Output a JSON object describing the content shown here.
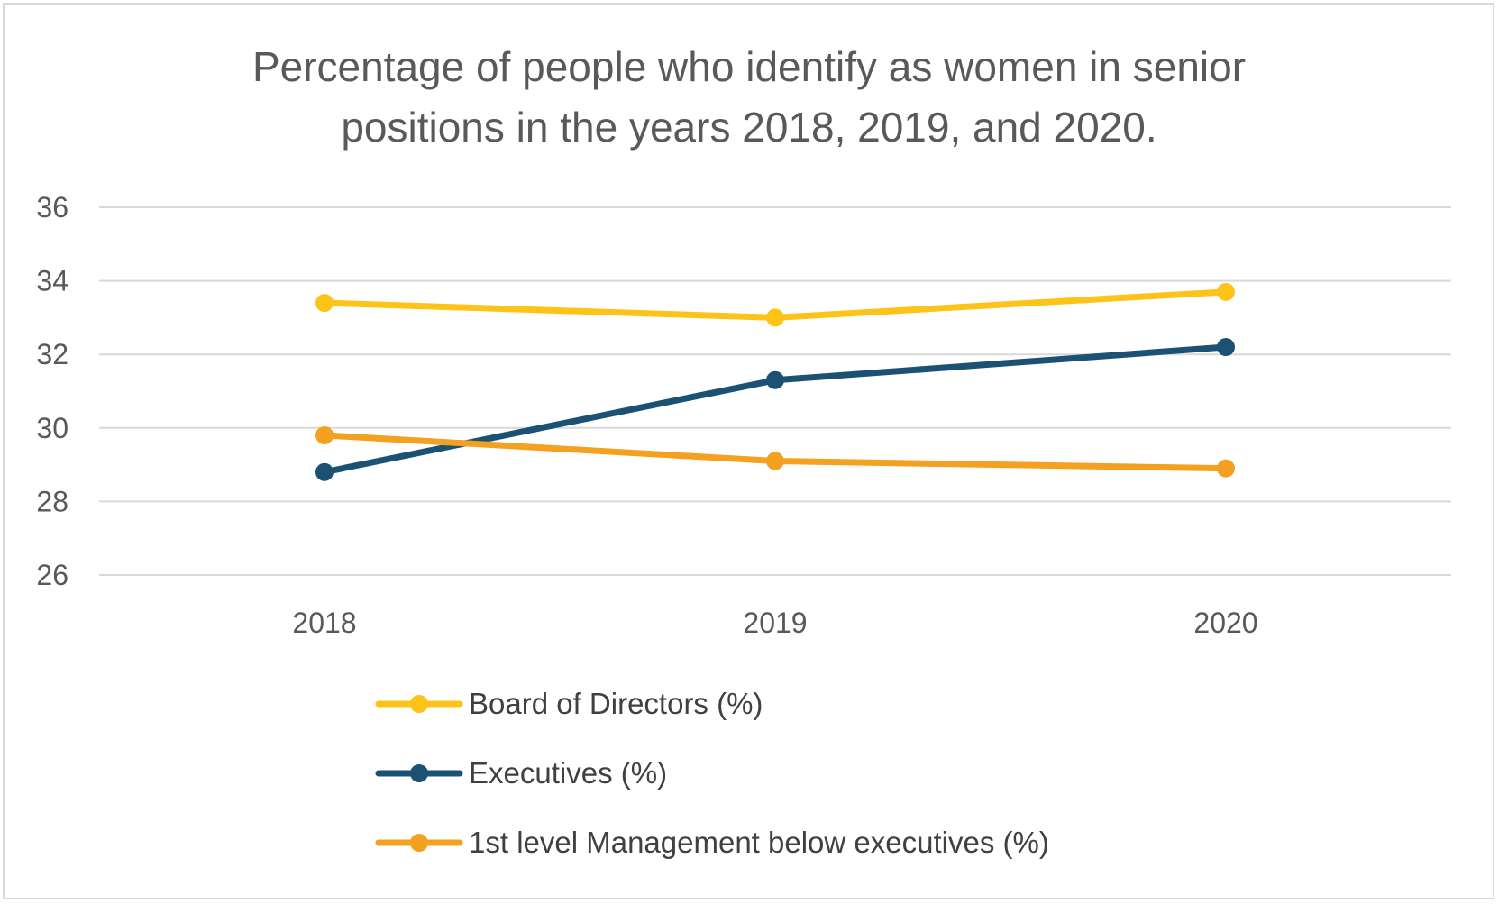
{
  "chart_data": {
    "type": "line",
    "title": "Percentage of people who identify as women in senior positions in the years 2018, 2019, and 2020.",
    "title_lines": [
      "Percentage of people who identify as women in senior",
      "positions in the years 2018, 2019, and 2020."
    ],
    "categories": [
      "2018",
      "2019",
      "2020"
    ],
    "ylim": [
      26,
      36
    ],
    "yticks": [
      "26",
      "28",
      "30",
      "32",
      "34",
      "36"
    ],
    "grid": true,
    "legend_position": "bottom",
    "xlabel": "",
    "ylabel": "",
    "series": [
      {
        "name": "Board of Directors (%)",
        "color": "#fcc419",
        "values": [
          33.4,
          33.0,
          33.7
        ]
      },
      {
        "name": "Executives (%)",
        "color": "#1b5273",
        "values": [
          28.8,
          31.3,
          32.2
        ]
      },
      {
        "name": "1st level Management below executives (%)",
        "color": "#f4a020",
        "values": [
          29.8,
          29.1,
          28.9
        ]
      }
    ]
  }
}
